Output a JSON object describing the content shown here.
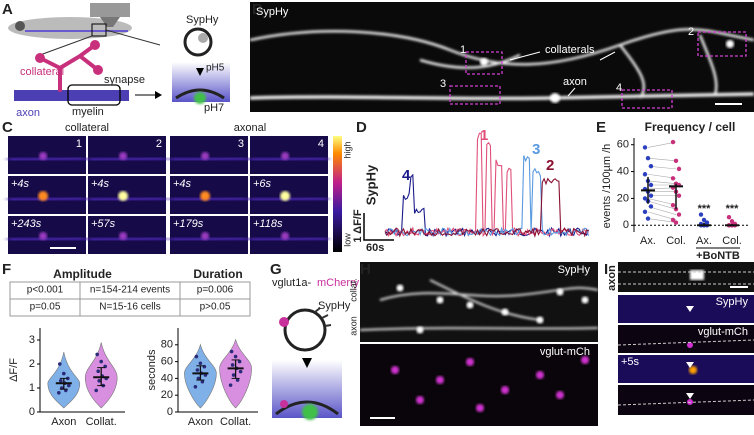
{
  "panel_labels": [
    "A",
    "B",
    "C",
    "D",
    "E",
    "F",
    "G",
    "H",
    "I"
  ],
  "panel_a": {
    "collateral": "collateral",
    "synapse": "synapse",
    "axon": "axon",
    "myelin": "myelin",
    "sensor": "SypHy",
    "ph_low": "pH5",
    "ph_high": "pH7"
  },
  "panel_b": {
    "channel": "SypHy",
    "rois": [
      "1",
      "2",
      "3",
      "4"
    ],
    "collaterals": "collaterals",
    "axon": "axon"
  },
  "panel_c": {
    "groups": [
      "collateral",
      "axonal"
    ],
    "rois": [
      "1",
      "2",
      "3",
      "4"
    ],
    "times_row2": [
      "+4s",
      "+4s",
      "+4s",
      "+6s"
    ],
    "times_row3": [
      "+243s",
      "+57s",
      "+179s",
      "+118s"
    ],
    "scale_high": "high",
    "scale_low": "low"
  },
  "panel_d": {
    "trace_labels": [
      "4",
      "1",
      "3",
      "2"
    ],
    "channel": "SypHy",
    "scale_y": "1 ΔF/F",
    "scale_x": "60s"
  },
  "panel_e": {
    "type": "dot",
    "title": "Frequency / cell",
    "y_label": "events /100µm /h",
    "categories": [
      "Ax.",
      "Col.",
      "Ax.",
      "Col."
    ],
    "group_label": "+BoNTB",
    "significance": [
      "***",
      "***"
    ],
    "ylim": [
      -5,
      65
    ],
    "yticks": [
      0,
      20,
      40,
      60
    ],
    "colors": [
      "#2b3fc0",
      "#c8307c",
      "#2b3fc0",
      "#c8307c"
    ],
    "medians": [
      26,
      29,
      0,
      0
    ],
    "quartiles": [
      [
        16,
        36
      ],
      [
        12,
        31
      ],
      [
        0,
        2
      ],
      [
        0,
        1
      ]
    ],
    "points": [
      [
        58,
        50,
        44,
        38,
        33,
        30,
        27,
        25,
        22,
        20,
        18,
        14,
        10,
        5
      ],
      [
        62,
        48,
        42,
        35,
        31,
        30,
        28,
        25,
        22,
        15,
        12,
        8,
        4,
        2
      ],
      [
        8,
        4,
        2,
        1,
        0,
        0,
        0,
        0
      ],
      [
        6,
        3,
        1,
        0,
        0,
        0,
        0,
        0
      ]
    ]
  },
  "panel_f": {
    "table": [
      [
        "p<0.001",
        "n=154-214 events",
        "p=0.006"
      ],
      [
        "p=0.05",
        "N=15-16 cells",
        "p>0.05"
      ]
    ],
    "charts": [
      {
        "type": "violin",
        "title": "Amplitude",
        "y_label": "ΔF/F",
        "categories": [
          "Axon",
          "Collat."
        ],
        "ylim": [
          0,
          3.5
        ],
        "yticks": [
          0,
          1,
          2,
          3
        ],
        "colors": [
          "#7fb0e8",
          "#d98fe0"
        ],
        "medians": [
          1.2,
          1.45
        ],
        "quartiles": [
          [
            0.95,
            1.4
          ],
          [
            1.1,
            1.85
          ]
        ],
        "points": [
          [
            0.8,
            0.9,
            1.0,
            1.1,
            1.2,
            1.3,
            1.4,
            1.6,
            2.0
          ],
          [
            0.9,
            1.1,
            1.3,
            1.4,
            1.5,
            1.7,
            1.9,
            2.1,
            2.4
          ]
        ]
      },
      {
        "type": "violin",
        "title": "Duration",
        "y_label": "seconds",
        "categories": [
          "Axon",
          "Collat."
        ],
        "ylim": [
          0,
          100
        ],
        "yticks": [
          0,
          20,
          40,
          60,
          80
        ],
        "colors": [
          "#7fb0e8",
          "#d98fe0"
        ],
        "medians": [
          46,
          52
        ],
        "quartiles": [
          [
            38,
            55
          ],
          [
            40,
            62
          ]
        ],
        "points": [
          [
            30,
            36,
            40,
            44,
            46,
            50,
            54,
            58,
            66
          ],
          [
            32,
            38,
            44,
            48,
            52,
            56,
            60,
            66,
            72
          ]
        ]
      }
    ]
  },
  "panel_g": {
    "construct": "vglut1a-",
    "tag": "mCherry",
    "sensor": "SypHy"
  },
  "panel_h": {
    "channel_top": "SypHy",
    "channel_bottom": "vglut-mCh",
    "collat": "collat.",
    "axon": "axon"
  },
  "panel_i": {
    "axon": "axon",
    "channel_1": "SypHy",
    "channel_2": "vglut-mCh",
    "time": "+5s"
  }
}
